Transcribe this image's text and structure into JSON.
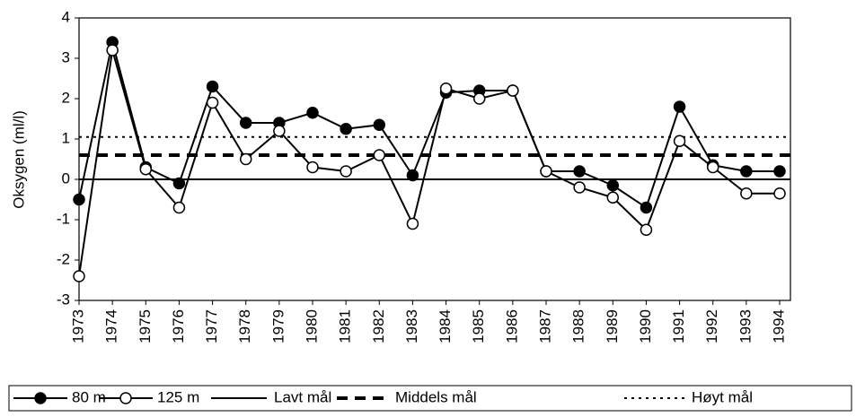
{
  "chart_data": {
    "type": "line",
    "y_label": "Oksygen (ml/l)",
    "categories": [
      "1973",
      "1974",
      "1975",
      "1976",
      "1977",
      "1978",
      "1979",
      "1980",
      "1981",
      "1982",
      "1983",
      "1984",
      "1985",
      "1986",
      "1987",
      "1988",
      "1989",
      "1990",
      "1991",
      "1992",
      "1993",
      "1994"
    ],
    "series": [
      {
        "name": "80 m",
        "color": "#000000",
        "marker_fill": "#000000",
        "values": [
          -0.5,
          3.4,
          0.3,
          -0.1,
          2.3,
          1.4,
          1.4,
          1.65,
          1.25,
          1.35,
          0.1,
          2.15,
          2.2,
          2.2,
          0.2,
          0.2,
          -0.15,
          -0.7,
          1.8,
          0.35,
          0.2,
          0.2
        ]
      },
      {
        "name": "125 m",
        "color": "#000000",
        "marker_fill": "#ffffff",
        "values": [
          -2.4,
          3.2,
          0.25,
          -0.7,
          1.9,
          0.5,
          1.2,
          0.3,
          0.2,
          0.6,
          -1.1,
          2.25,
          2.0,
          2.2,
          0.2,
          -0.2,
          -0.45,
          -1.25,
          0.95,
          0.3,
          -0.35,
          -0.35
        ]
      }
    ],
    "reference_lines": [
      {
        "name": "Lavt mål",
        "value": 0,
        "style": "solid"
      },
      {
        "name": "Middels mål",
        "value": 0.6,
        "style": "dashed"
      },
      {
        "name": "Høyt mål",
        "value": 1.05,
        "style": "dotted"
      }
    ],
    "ylim": [
      -3,
      4
    ],
    "yticks": [
      -3,
      -2,
      -1,
      0,
      1,
      2,
      3,
      4
    ],
    "grid": false
  }
}
